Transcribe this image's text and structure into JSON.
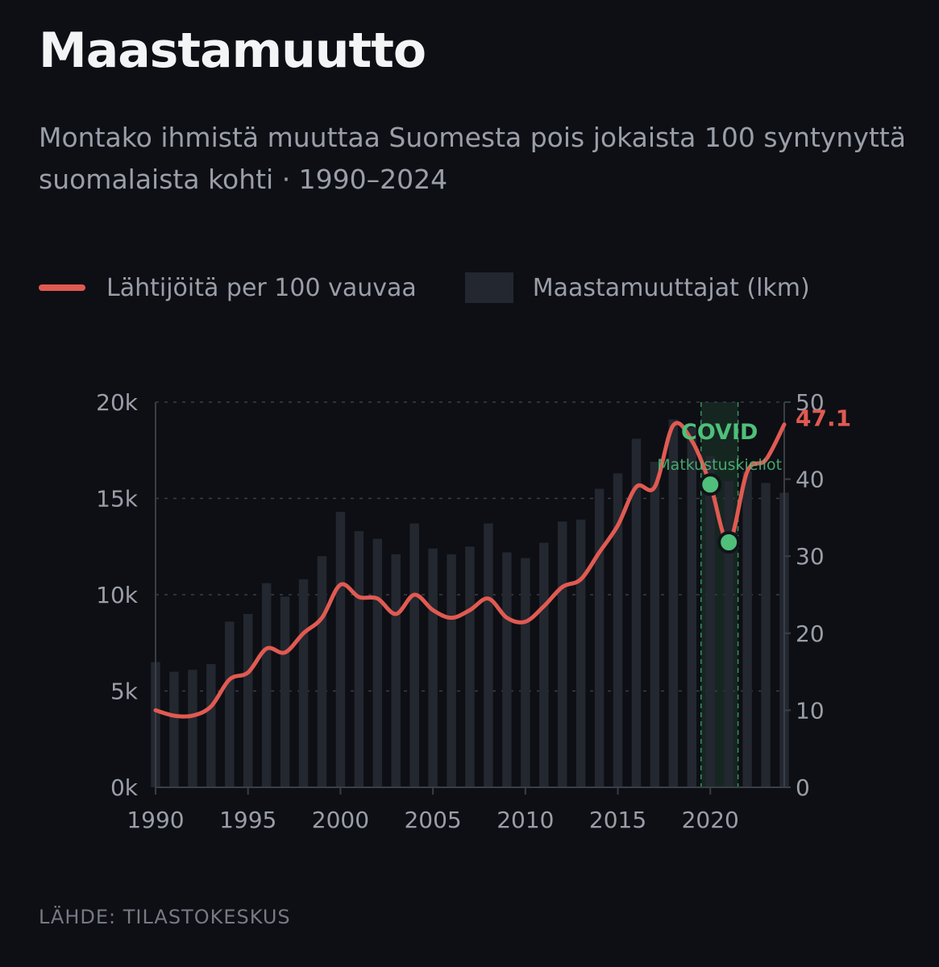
{
  "title": "Maastamuutto",
  "subtitle": "Montako ihmistä muuttaa Suomesta pois jokaista 100 syntynyttä suomalaista kohti · 1990–2024",
  "legend": {
    "line_label": "Lähtijöitä per 100 vauvaa",
    "bar_label": "Maastamuuttajat (lkm)"
  },
  "source": "LÄHDE: TILASTOKESKUS",
  "colors": {
    "background": "#0d0f14",
    "line": "#e05a52",
    "bars": "#23272f",
    "covid": "#4fbf7a",
    "grid": "#3a3e46",
    "text": "#9a9ea8"
  },
  "chart_data": {
    "type": "bar+line",
    "x": [
      1990,
      1991,
      1992,
      1993,
      1994,
      1995,
      1996,
      1997,
      1998,
      1999,
      2000,
      2001,
      2002,
      2003,
      2004,
      2005,
      2006,
      2007,
      2008,
      2009,
      2010,
      2011,
      2012,
      2013,
      2014,
      2015,
      2016,
      2017,
      2018,
      2019,
      2020,
      2021,
      2022,
      2023,
      2024
    ],
    "series": [
      {
        "name": "Maastamuuttajat (lkm)",
        "kind": "bar",
        "axis": "left",
        "values": [
          6500,
          6000,
          6100,
          6400,
          8600,
          9000,
          10600,
          9900,
          10800,
          12000,
          14300,
          13300,
          12900,
          12100,
          13700,
          12400,
          12100,
          12500,
          13700,
          12200,
          11900,
          12700,
          13800,
          13900,
          15500,
          16300,
          18100,
          16900,
          19100,
          18700,
          17200,
          15900,
          16400,
          15800,
          15300
        ]
      },
      {
        "name": "Lähtijöitä per 100 vauvaa",
        "kind": "line",
        "axis": "right",
        "values": [
          10,
          9.3,
          9.3,
          10.5,
          14,
          14.9,
          18,
          17.5,
          20,
          22,
          26.3,
          24.7,
          24.5,
          22.5,
          25,
          23,
          22,
          23,
          24.5,
          22,
          21.5,
          23.5,
          26,
          27,
          30.5,
          34,
          39,
          39,
          47,
          45,
          39.3,
          31.8,
          41,
          42.5,
          47.1
        ]
      }
    ],
    "ylim_left": [
      0,
      20000
    ],
    "yticks_left": [
      "0k",
      "5k",
      "10k",
      "15k",
      "20k"
    ],
    "ylim_right": [
      0,
      50
    ],
    "yticks_right": [
      "0",
      "10",
      "20",
      "30",
      "40",
      "50"
    ],
    "xticks": [
      "1990",
      "1995",
      "2000",
      "2005",
      "2010",
      "2015",
      "2020"
    ],
    "grid": true,
    "highlight": {
      "from": 2019.5,
      "to": 2021.5,
      "label": "COVID",
      "sublabel": "Matkustuskiellot",
      "points": [
        2020,
        2021
      ]
    },
    "end_label": "47.1"
  }
}
